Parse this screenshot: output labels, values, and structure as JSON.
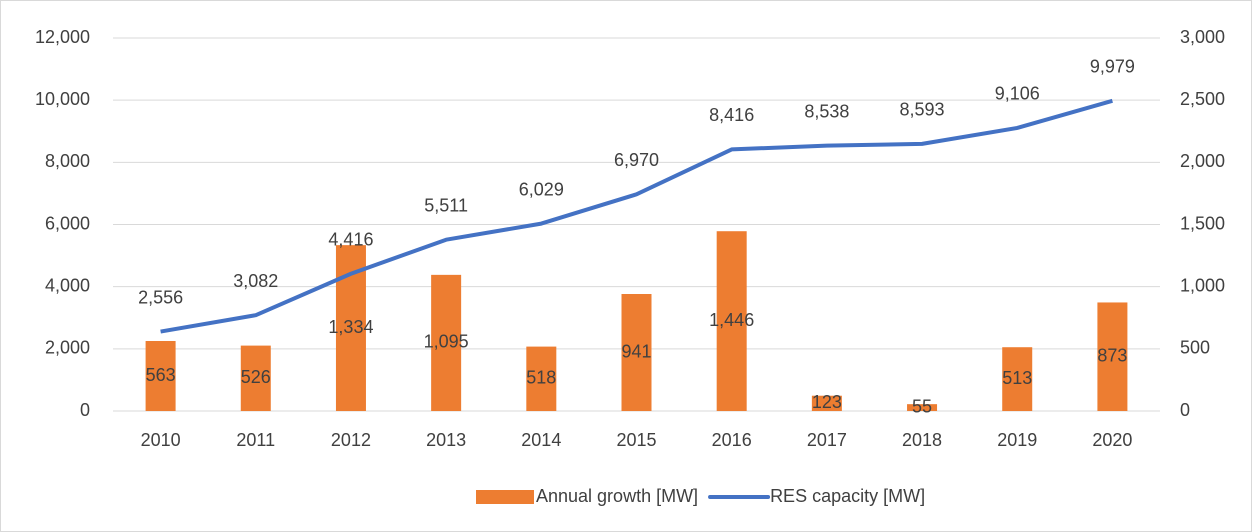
{
  "chart_data": {
    "type": "bar-line",
    "categories": [
      "2010",
      "2011",
      "2012",
      "2013",
      "2014",
      "2015",
      "2016",
      "2017",
      "2018",
      "2019",
      "2020"
    ],
    "series": [
      {
        "name": "Annual growth [MW]",
        "type": "bar",
        "axis": "y2",
        "color": "#ed7d31",
        "values": [
          563,
          526,
          1334,
          1095,
          518,
          941,
          1446,
          123,
          55,
          513,
          873
        ],
        "value_labels": [
          "563",
          "526",
          "1,334",
          "1,095",
          "518",
          "941",
          "1,446",
          "123",
          "55",
          "513",
          "873"
        ]
      },
      {
        "name": "RES capacity [MW]",
        "type": "line",
        "color": "#4472c4",
        "values": [
          2556,
          3082,
          4416,
          5511,
          6029,
          6970,
          8416,
          8538,
          8593,
          9106,
          9979
        ],
        "value_labels": [
          "2,556",
          "3,082",
          "4,416",
          "5,511",
          "6,029",
          "6,970",
          "8,416",
          "8,538",
          "8,593",
          "9,106",
          "9,979"
        ]
      }
    ],
    "ylim": [
      0,
      12000
    ],
    "yticks": [
      0,
      {
        "value": 2000,
        "label": "2,000"
      },
      {
        "value": 4000,
        "label": "4,000"
      },
      {
        "value": 6000,
        "label": "6,000"
      },
      {
        "value": 8000,
        "label": "8,000"
      },
      {
        "value": 10000,
        "label": "10,000"
      },
      {
        "value": 12000,
        "label": "12,000"
      }
    ],
    "y2lim": [
      0,
      3000
    ],
    "y2ticks": [
      0,
      500,
      {
        "value": 1000,
        "label": "1,000"
      },
      {
        "value": 1500,
        "label": "1,500"
      },
      {
        "value": 2000,
        "label": "2,000"
      },
      {
        "value": 2500,
        "label": "2,500"
      },
      {
        "value": 3000,
        "label": "3,000"
      }
    ],
    "grid": true,
    "legend": "bottom"
  }
}
